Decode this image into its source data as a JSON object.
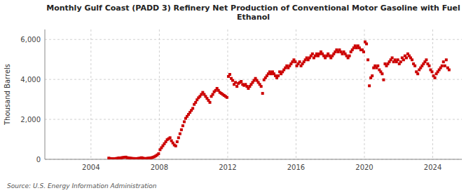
{
  "chart_data": {
    "type": "scatter",
    "title": "Monthly Gulf Coast (PADD 3) Refinery Net Production of Conventional Motor Gasoline with Fuel\nEthanol",
    "y_label": "Thousand Barrels",
    "annotations": [
      "Source: U.S. Energy Information Administration"
    ],
    "color": "#cc0000",
    "marker": "square",
    "grid": true,
    "xlim": [
      2001.3,
      2025.7
    ],
    "xticks": [
      2004,
      2008,
      2012,
      2016,
      2020,
      2024
    ],
    "ylim": [
      0,
      6500
    ],
    "yticks": [
      0,
      {
        "value": 2000,
        "label": "2,000"
      },
      {
        "value": 4000,
        "label": "4,000"
      },
      {
        "value": 6000,
        "label": "6,000"
      }
    ],
    "x": [
      2005.0416666667,
      2005.125,
      2005.2083333333,
      2005.2916666667,
      2005.375,
      2005.4583333333,
      2005.5416666667,
      2005.625,
      2005.7083333333,
      2005.7916666667,
      2005.875,
      2005.9583333333,
      2006.0416666667,
      2006.125,
      2006.2083333333,
      2006.2916666667,
      2006.375,
      2006.4583333333,
      2006.5416666667,
      2006.625,
      2006.7083333333,
      2006.7916666667,
      2006.875,
      2006.9583333333,
      2007.0416666667,
      2007.125,
      2007.2083333333,
      2007.2916666667,
      2007.375,
      2007.4583333333,
      2007.5416666667,
      2007.625,
      2007.7083333333,
      2007.7916666667,
      2007.875,
      2007.9583333333,
      2008.0416666667,
      2008.125,
      2008.2083333333,
      2008.2916666667,
      2008.375,
      2008.4583333333,
      2008.5416666667,
      2008.625,
      2008.7083333333,
      2008.7916666667,
      2008.875,
      2008.9583333333,
      2009.0416666667,
      2009.125,
      2009.2083333333,
      2009.2916666667,
      2009.375,
      2009.4583333333,
      2009.5416666667,
      2009.625,
      2009.7083333333,
      2009.7916666667,
      2009.875,
      2009.9583333333,
      2010.0416666667,
      2010.125,
      2010.2083333333,
      2010.2916666667,
      2010.375,
      2010.4583333333,
      2010.5416666667,
      2010.625,
      2010.7083333333,
      2010.7916666667,
      2010.875,
      2010.9583333333,
      2011.0416666667,
      2011.125,
      2011.2083333333,
      2011.2916666667,
      2011.375,
      2011.4583333333,
      2011.5416666667,
      2011.625,
      2011.7083333333,
      2011.7916666667,
      2011.875,
      2011.9583333333,
      2012.0416666667,
      2012.125,
      2012.2083333333,
      2012.2916666667,
      2012.375,
      2012.4583333333,
      2012.5416666667,
      2012.625,
      2012.7083333333,
      2012.7916666667,
      2012.875,
      2012.9583333333,
      2013.0416666667,
      2013.125,
      2013.2083333333,
      2013.2916666667,
      2013.375,
      2013.4583333333,
      2013.5416666667,
      2013.625,
      2013.7083333333,
      2013.7916666667,
      2013.875,
      2013.9583333333,
      2014.0416666667,
      2014.125,
      2014.2083333333,
      2014.2916666667,
      2014.375,
      2014.4583333333,
      2014.5416666667,
      2014.625,
      2014.7083333333,
      2014.7916666667,
      2014.875,
      2014.9583333333,
      2015.0416666667,
      2015.125,
      2015.2083333333,
      2015.2916666667,
      2015.375,
      2015.4583333333,
      2015.5416666667,
      2015.625,
      2015.7083333333,
      2015.7916666667,
      2015.875,
      2015.9583333333,
      2016.0416666667,
      2016.125,
      2016.2083333333,
      2016.2916666667,
      2016.375,
      2016.4583333333,
      2016.5416666667,
      2016.625,
      2016.7083333333,
      2016.7916666667,
      2016.875,
      2016.9583333333,
      2017.0416666667,
      2017.125,
      2017.2083333333,
      2017.2916666667,
      2017.375,
      2017.4583333333,
      2017.5416666667,
      2017.625,
      2017.7083333333,
      2017.7916666667,
      2017.875,
      2017.9583333333,
      2018.0416666667,
      2018.125,
      2018.2083333333,
      2018.2916666667,
      2018.375,
      2018.4583333333,
      2018.5416666667,
      2018.625,
      2018.7083333333,
      2018.7916666667,
      2018.875,
      2018.9583333333,
      2019.0416666667,
      2019.125,
      2019.2083333333,
      2019.2916666667,
      2019.375,
      2019.4583333333,
      2019.5416666667,
      2019.625,
      2019.7083333333,
      2019.7916666667,
      2019.875,
      2019.9583333333,
      2020.0416666667,
      2020.125,
      2020.2083333333,
      2020.2916666667,
      2020.375,
      2020.4583333333,
      2020.5416666667,
      2020.625,
      2020.7083333333,
      2020.7916666667,
      2020.875,
      2020.9583333333,
      2021.0416666667,
      2021.125,
      2021.2083333333,
      2021.2916666667,
      2021.375,
      2021.4583333333,
      2021.5416666667,
      2021.625,
      2021.7083333333,
      2021.7916666667,
      2021.875,
      2021.9583333333,
      2022.0416666667,
      2022.125,
      2022.2083333333,
      2022.2916666667,
      2022.375,
      2022.4583333333,
      2022.5416666667,
      2022.625,
      2022.7083333333,
      2022.7916666667,
      2022.875,
      2022.9583333333,
      2023.0416666667,
      2023.125,
      2023.2083333333,
      2023.2916666667,
      2023.375,
      2023.4583333333,
      2023.5416666667,
      2023.625,
      2023.7083333333,
      2023.7916666667,
      2023.875,
      2023.9583333333,
      2024.0416666667,
      2024.125,
      2024.2083333333,
      2024.2916666667,
      2024.375,
      2024.4583333333,
      2024.5416666667,
      2024.625,
      2024.7083333333,
      2024.7916666667,
      2024.875,
      2024.9583333333
    ],
    "values": [
      60,
      40,
      30,
      30,
      25,
      40,
      50,
      70,
      60,
      80,
      90,
      100,
      110,
      80,
      70,
      60,
      50,
      40,
      40,
      30,
      40,
      50,
      60,
      80,
      60,
      40,
      40,
      50,
      60,
      70,
      80,
      100,
      130,
      170,
      220,
      280,
      480,
      580,
      680,
      780,
      880,
      980,
      1030,
      1080,
      930,
      820,
      720,
      670,
      880,
      1080,
      1280,
      1480,
      1680,
      1880,
      2050,
      2150,
      2250,
      2350,
      2450,
      2550,
      2750,
      2850,
      2980,
      3080,
      3150,
      3250,
      3350,
      3250,
      3150,
      3050,
      2950,
      2850,
      3150,
      3250,
      3380,
      3450,
      3550,
      3450,
      3350,
      3300,
      3250,
      3200,
      3150,
      3100,
      4150,
      4250,
      4050,
      3950,
      3750,
      3850,
      3650,
      3800,
      3850,
      3900,
      3750,
      3700,
      3750,
      3650,
      3550,
      3650,
      3750,
      3850,
      3950,
      4050,
      3950,
      3850,
      3750,
      3650,
      3300,
      3980,
      4080,
      4180,
      4280,
      4380,
      4280,
      4380,
      4280,
      4180,
      4080,
      4180,
      4380,
      4280,
      4380,
      4480,
      4580,
      4680,
      4580,
      4680,
      4780,
      4880,
      4980,
      4880,
      4680,
      4780,
      4880,
      4680,
      4780,
      4880,
      4980,
      5080,
      4980,
      5080,
      5180,
      5280,
      5080,
      5180,
      5280,
      5180,
      5280,
      5380,
      5280,
      5180,
      5080,
      5180,
      5280,
      5180,
      5080,
      5180,
      5280,
      5380,
      5480,
      5380,
      5480,
      5380,
      5280,
      5380,
      5280,
      5180,
      5080,
      5180,
      5380,
      5480,
      5580,
      5680,
      5580,
      5680,
      5580,
      5480,
      5480,
      5380,
      5880,
      5780,
      4980,
      3680,
      4080,
      4180,
      4580,
      4680,
      4580,
      4680,
      4480,
      4380,
      4280,
      3980,
      4780,
      4680,
      4780,
      4880,
      4980,
      5080,
      4880,
      4980,
      4880,
      4980,
      4780,
      4880,
      5080,
      4980,
      5180,
      5080,
      5280,
      5180,
      5080,
      4980,
      4780,
      4680,
      4380,
      4280,
      4480,
      4580,
      4680,
      4780,
      4880,
      4980,
      4780,
      4680,
      4480,
      4380,
      4180,
      4080,
      4280,
      4380,
      4480,
      4580,
      4680,
      4880,
      4680,
      4980,
      4580,
      4480
    ]
  }
}
